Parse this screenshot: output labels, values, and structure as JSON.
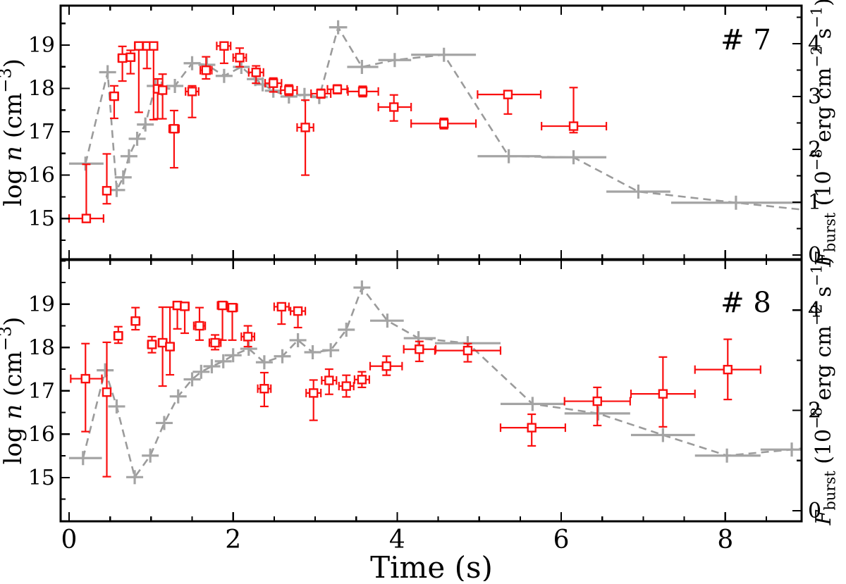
{
  "colors": {
    "red": "#fa0f0f",
    "gray_marker": "#a4a4a4",
    "gray_line": "#9b9b9b",
    "axis": "#000000",
    "background": "#ffffff"
  },
  "chart_data": {
    "type": "scatter",
    "xlabel": "Time (s)",
    "xlim": [
      -0.103,
      8.93
    ],
    "x_ticks": [
      0,
      2,
      4,
      6,
      8
    ],
    "x_minor_step": 0.5,
    "grid": "off",
    "legend": "none",
    "ylabel_left_segments": [
      {
        "t": "log ",
        "s": "n"
      },
      {
        "t": "n",
        "s": "i"
      },
      {
        "t": " (cm",
        "s": "n"
      },
      {
        "t": "−3",
        "s": "sup"
      },
      {
        "t": ")",
        "s": "n"
      }
    ],
    "ylabel_right_segments": [
      {
        "t": "F",
        "s": "i"
      },
      {
        "t": "burst",
        "s": "sub"
      },
      {
        "t": " (10",
        "s": "n"
      },
      {
        "t": "−8",
        "s": "sup"
      },
      {
        "t": " erg cm",
        "s": "n"
      },
      {
        "t": "−2",
        "s": "sup"
      },
      {
        "t": " s",
        "s": "n"
      },
      {
        "t": "−1",
        "s": "sup"
      },
      {
        "t": ")",
        "s": "n"
      }
    ],
    "series_info": {
      "red_squares": "log n density, left axis",
      "gray_dashed_crosses": "burst flux, right axis"
    },
    "panels": [
      {
        "tag": "# 7",
        "ylim_left": [
          14.06,
          19.91
        ],
        "yticks_left": [
          15,
          16,
          17,
          18,
          19
        ],
        "y_left_minor_step": 0.5,
        "ylim_right": [
          -0.08,
          4.72
        ],
        "yticks_right": [
          0,
          1,
          2,
          3,
          4
        ],
        "y_right_minor_step": 0.5,
        "red": [
          [
            0.21,
            0.0,
            0.42,
            15.0,
            14.94,
            16.25
          ],
          [
            0.46,
            0.42,
            0.5,
            15.64,
            15.34,
            16.49
          ],
          [
            0.55,
            0.5,
            0.6,
            17.82,
            17.31,
            18.06
          ],
          [
            0.65,
            0.6,
            0.7,
            18.7,
            18.17,
            18.97
          ],
          [
            0.75,
            0.7,
            0.8,
            18.72,
            18.34,
            18.88
          ],
          [
            0.85,
            0.8,
            0.9,
            18.98,
            17.45,
            19.02
          ],
          [
            0.95,
            0.9,
            1.0,
            18.98,
            18.46,
            19.02
          ],
          [
            1.03,
            1.0,
            1.07,
            18.98,
            17.28,
            19.02
          ],
          [
            1.08,
            1.05,
            1.11,
            17.99,
            17.3,
            18.22
          ],
          [
            1.14,
            1.11,
            1.18,
            17.96,
            17.3,
            18.33
          ],
          [
            1.28,
            1.22,
            1.34,
            17.07,
            16.17,
            17.49
          ],
          [
            1.5,
            1.42,
            1.58,
            17.93,
            17.33,
            18.06
          ],
          [
            1.67,
            1.6,
            1.74,
            18.42,
            18.22,
            18.73
          ],
          [
            1.89,
            1.8,
            1.97,
            18.98,
            18.58,
            19.02
          ],
          [
            2.08,
            2.0,
            2.16,
            18.71,
            18.5,
            18.93
          ],
          [
            2.28,
            2.19,
            2.37,
            18.37,
            18.12,
            18.52
          ],
          [
            2.49,
            2.39,
            2.59,
            18.12,
            17.92,
            18.24
          ],
          [
            2.68,
            2.58,
            2.78,
            17.96,
            17.84,
            18.08
          ],
          [
            2.88,
            2.78,
            2.98,
            17.1,
            16.0,
            17.73
          ],
          [
            3.07,
            2.95,
            3.19,
            17.88,
            17.78,
            17.98
          ],
          [
            3.27,
            3.15,
            3.39,
            17.98,
            17.88,
            18.08
          ],
          [
            3.58,
            3.4,
            3.77,
            17.93,
            17.81,
            18.05
          ],
          [
            3.96,
            3.77,
            4.17,
            17.57,
            17.25,
            17.85
          ],
          [
            4.57,
            4.17,
            4.96,
            17.19,
            17.07,
            17.31
          ],
          [
            5.35,
            4.98,
            5.75,
            17.86,
            17.41,
            17.94
          ],
          [
            6.15,
            5.76,
            6.55,
            17.13,
            16.98,
            18.02
          ]
        ],
        "gray": [
          [
            0.2,
            0.0,
            0.42,
            1.73,
            1
          ],
          [
            0.47,
            0.44,
            0.5,
            3.46,
            1
          ],
          [
            0.58,
            0.55,
            0.61,
            1.23,
            1
          ],
          [
            0.66,
            0.63,
            0.69,
            1.47,
            1
          ],
          [
            0.73,
            0.7,
            0.76,
            1.87,
            1
          ],
          [
            0.83,
            0.79,
            0.87,
            2.2,
            1
          ],
          [
            0.93,
            0.89,
            0.97,
            2.47,
            1
          ],
          [
            1.05,
            1.0,
            1.1,
            3.2,
            1
          ],
          [
            1.13,
            1.08,
            1.18,
            3.15,
            1
          ],
          [
            1.29,
            1.22,
            1.36,
            3.2,
            1
          ],
          [
            1.5,
            1.42,
            1.58,
            3.63,
            1
          ],
          [
            1.68,
            1.6,
            1.76,
            3.6,
            1
          ],
          [
            1.89,
            1.8,
            1.98,
            3.39,
            1
          ],
          [
            2.1,
            2.01,
            2.19,
            3.56,
            1
          ],
          [
            2.27,
            2.19,
            2.35,
            3.33,
            1
          ],
          [
            2.36,
            2.28,
            2.44,
            3.23,
            1
          ],
          [
            2.49,
            2.41,
            2.57,
            3.11,
            1
          ],
          [
            2.68,
            2.58,
            2.78,
            3.0,
            1
          ],
          [
            2.87,
            2.77,
            2.97,
            3.03,
            1
          ],
          [
            3.05,
            2.95,
            3.15,
            2.99,
            1
          ],
          [
            3.28,
            3.17,
            3.39,
            4.31,
            1
          ],
          [
            3.57,
            3.39,
            3.77,
            3.56,
            1
          ],
          [
            3.97,
            3.77,
            4.17,
            3.69,
            1
          ],
          [
            4.57,
            4.17,
            4.96,
            3.79,
            1
          ],
          [
            5.36,
            4.98,
            5.75,
            1.87,
            1
          ],
          [
            6.15,
            5.76,
            6.55,
            1.85,
            1
          ],
          [
            6.94,
            6.55,
            7.33,
            1.2,
            1
          ],
          [
            8.13,
            7.34,
            8.93,
            0.99,
            1
          ],
          [
            8.93,
            8.93,
            8.93,
            0.86,
            0
          ]
        ]
      },
      {
        "tag": "# 8",
        "ylim_left": [
          13.99,
          20.02
        ],
        "yticks_left": [
          15,
          16,
          17,
          18,
          19
        ],
        "y_left_minor_step": 0.5,
        "ylim_right": [
          -0.21,
          5.0
        ],
        "yticks_right": [
          0,
          2,
          4
        ],
        "y_right_minor_step": 1,
        "red": [
          [
            0.2,
            0.02,
            0.4,
            17.28,
            16.06,
            18.09
          ],
          [
            0.46,
            0.42,
            0.5,
            16.97,
            15.02,
            18.12
          ],
          [
            0.6,
            0.55,
            0.65,
            18.27,
            18.1,
            18.48
          ],
          [
            0.81,
            0.76,
            0.86,
            18.61,
            18.41,
            18.92
          ],
          [
            1.01,
            0.96,
            1.06,
            18.07,
            17.88,
            18.25
          ],
          [
            1.14,
            1.09,
            1.19,
            18.11,
            17.11,
            18.93
          ],
          [
            1.23,
            1.18,
            1.28,
            18.02,
            17.37,
            18.93
          ],
          [
            1.32,
            1.27,
            1.37,
            18.97,
            18.43,
            19.02
          ],
          [
            1.41,
            1.36,
            1.46,
            18.95,
            18.33,
            19.0
          ],
          [
            1.59,
            1.52,
            1.66,
            18.5,
            18.17,
            18.92
          ],
          [
            1.78,
            1.71,
            1.85,
            18.11,
            17.95,
            18.29
          ],
          [
            1.87,
            1.81,
            1.93,
            18.97,
            18.17,
            19.02
          ],
          [
            1.99,
            1.93,
            2.05,
            18.92,
            18.17,
            18.98
          ],
          [
            2.18,
            2.1,
            2.26,
            18.25,
            18.02,
            18.5
          ],
          [
            2.38,
            2.3,
            2.46,
            17.05,
            16.64,
            17.42
          ],
          [
            2.59,
            2.5,
            2.68,
            18.94,
            18.54,
            18.99
          ],
          [
            2.79,
            2.7,
            2.88,
            18.84,
            18.46,
            18.9
          ],
          [
            2.98,
            2.89,
            3.07,
            16.95,
            16.32,
            17.25
          ],
          [
            3.17,
            3.08,
            3.26,
            17.24,
            16.92,
            17.5
          ],
          [
            3.38,
            3.29,
            3.47,
            17.11,
            16.86,
            17.36
          ],
          [
            3.57,
            3.48,
            3.66,
            17.26,
            17.08,
            17.44
          ],
          [
            3.87,
            3.67,
            4.06,
            17.57,
            17.36,
            17.8
          ],
          [
            4.27,
            4.08,
            4.47,
            17.96,
            17.68,
            18.14
          ],
          [
            4.86,
            4.46,
            5.26,
            17.93,
            17.67,
            18.09
          ],
          [
            5.64,
            5.26,
            6.05,
            16.15,
            15.73,
            16.46
          ],
          [
            6.44,
            6.04,
            6.84,
            16.76,
            16.2,
            17.08
          ],
          [
            7.24,
            6.85,
            7.63,
            16.93,
            16.17,
            17.78
          ],
          [
            8.03,
            7.63,
            8.43,
            17.49,
            16.8,
            18.19
          ]
        ],
        "gray": [
          [
            0.17,
            0.0,
            0.4,
            1.05,
            1
          ],
          [
            0.44,
            0.41,
            0.47,
            2.8,
            1
          ],
          [
            0.58,
            0.54,
            0.62,
            2.08,
            1
          ],
          [
            0.8,
            0.74,
            0.86,
            0.67,
            1
          ],
          [
            0.99,
            0.94,
            1.04,
            1.1,
            1
          ],
          [
            1.16,
            1.1,
            1.22,
            1.75,
            1
          ],
          [
            1.33,
            1.27,
            1.39,
            2.28,
            1
          ],
          [
            1.5,
            1.44,
            1.56,
            2.62,
            1
          ],
          [
            1.61,
            1.56,
            1.66,
            2.77,
            1
          ],
          [
            1.74,
            1.68,
            1.8,
            2.88,
            1
          ],
          [
            1.88,
            1.81,
            1.95,
            2.98,
            1
          ],
          [
            2.0,
            1.93,
            2.07,
            3.1,
            1
          ],
          [
            2.19,
            2.11,
            2.27,
            3.23,
            1
          ],
          [
            2.38,
            2.3,
            2.46,
            2.96,
            1
          ],
          [
            2.6,
            2.51,
            2.69,
            3.08,
            1
          ],
          [
            2.79,
            2.7,
            2.88,
            3.4,
            1
          ],
          [
            2.97,
            2.88,
            3.06,
            3.16,
            1
          ],
          [
            3.19,
            3.1,
            3.28,
            3.2,
            1
          ],
          [
            3.38,
            3.29,
            3.47,
            3.61,
            1
          ],
          [
            3.57,
            3.48,
            3.66,
            4.45,
            1
          ],
          [
            3.88,
            3.67,
            4.08,
            3.79,
            1
          ],
          [
            4.26,
            4.08,
            4.47,
            3.44,
            1
          ],
          [
            4.86,
            4.46,
            5.26,
            3.34,
            1
          ],
          [
            5.65,
            5.26,
            6.05,
            2.13,
            1
          ],
          [
            6.45,
            6.04,
            6.84,
            1.94,
            1
          ],
          [
            7.24,
            6.85,
            7.63,
            1.51,
            1
          ],
          [
            8.02,
            7.63,
            8.43,
            1.1,
            1
          ],
          [
            8.81,
            8.43,
            8.93,
            1.22,
            1
          ],
          [
            8.93,
            8.93,
            8.93,
            1.24,
            0
          ]
        ]
      }
    ]
  }
}
